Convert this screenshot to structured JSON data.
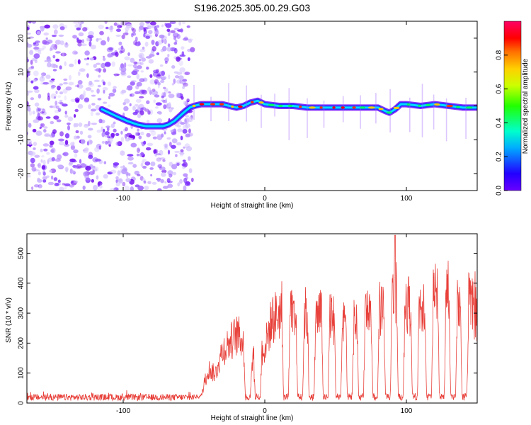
{
  "title": "S196.2025.305.00.29.G03",
  "chart_data": [
    {
      "type": "heatmap",
      "name": "spectrogram",
      "xlabel": "Height of straight line (km)",
      "ylabel": "Frequency (Hz)",
      "xlim": [
        -168,
        150
      ],
      "ylim": [
        -25,
        25
      ],
      "xticks": [
        -100,
        0,
        100
      ],
      "yticks": [
        -20,
        -10,
        0,
        10,
        20
      ],
      "colorbar": {
        "label": "Normalized spectral amplitude",
        "range": [
          0,
          1
        ],
        "ticks": [
          0.0,
          0.2,
          0.4,
          0.6,
          0.8
        ]
      },
      "noise_region": {
        "x_from": -168,
        "x_to": -53
      },
      "ridge": {
        "x": [
          -115,
          -105,
          -97,
          -90,
          -84,
          -78,
          -72,
          -68,
          -64,
          -60,
          -56,
          -53,
          -50,
          -45,
          -40,
          -35,
          -30,
          -25,
          -20,
          -15,
          -10,
          -5,
          0,
          10,
          20,
          30,
          40,
          50,
          60,
          70,
          80,
          85,
          88,
          92,
          96,
          100,
          110,
          120,
          130,
          140,
          150
        ],
        "freq": [
          -1,
          -3,
          -4.5,
          -5.5,
          -6,
          -6,
          -6,
          -5.5,
          -4.5,
          -3,
          -1.5,
          -0.5,
          0,
          0.5,
          0.5,
          0.5,
          0.5,
          0,
          -0.5,
          0,
          1,
          1.5,
          0.5,
          0,
          0,
          -0.5,
          -0.5,
          -0.5,
          -0.5,
          -0.5,
          -0.5,
          -1.5,
          -2,
          -1,
          0.5,
          0.5,
          0,
          0.5,
          0,
          -0.5,
          -0.5
        ]
      }
    },
    {
      "type": "line",
      "name": "snr",
      "xlabel": "Height of straight line (km)",
      "ylabel": "SNR (10 * v/v)",
      "xlim": [
        -168,
        150
      ],
      "ylim": [
        0,
        565
      ],
      "xticks": [
        -100,
        0,
        100
      ],
      "yticks": [
        0,
        100,
        200,
        300,
        400,
        500
      ],
      "color": "#e8403a",
      "noise_level": 20,
      "envelope": {
        "x": [
          -168,
          -60,
          -45,
          -40,
          -35,
          -30,
          -25,
          -20,
          -15,
          -10,
          -5,
          0,
          5,
          10,
          15,
          20,
          25,
          30,
          35,
          40,
          45,
          50,
          55,
          60,
          65,
          70,
          75,
          80,
          85,
          90,
          95,
          100,
          105,
          110,
          115,
          120,
          125,
          130,
          135,
          140,
          145,
          150
        ],
        "values": [
          20,
          25,
          25,
          130,
          110,
          200,
          230,
          260,
          240,
          170,
          190,
          210,
          320,
          340,
          380,
          320,
          310,
          350,
          320,
          340,
          360,
          300,
          340,
          330,
          310,
          370,
          340,
          360,
          380,
          420,
          400,
          390,
          350,
          380,
          400,
          410,
          390,
          420,
          380,
          380,
          380,
          330
        ]
      },
      "dropouts_x": [
        -12,
        -5,
        15,
        25,
        33,
        43,
        52,
        60,
        68,
        78,
        87,
        96,
        106,
        116,
        125,
        133,
        141
      ],
      "peak": {
        "x": 92,
        "y": 560
      }
    }
  ]
}
